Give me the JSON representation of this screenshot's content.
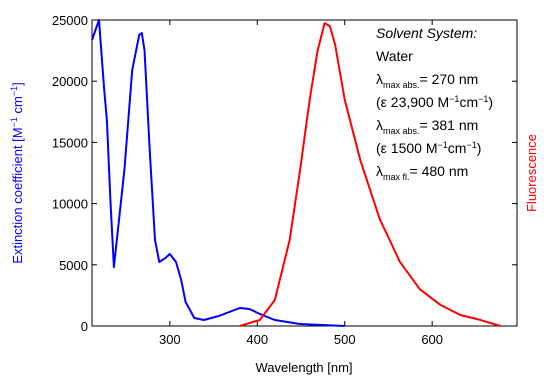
{
  "chart_data": {
    "type": "line",
    "xlabel": "Wavelength [nm]",
    "ylabel": [
      "Extinction coefficient [M",
      "−1",
      " cm",
      "−1",
      "]"
    ],
    "y2label": "Fluorescence",
    "ylabel_color": "#0000ff",
    "y2label_color": "#ff0000",
    "xlim": [
      211,
      697
    ],
    "xticks": [
      300,
      400,
      500,
      600
    ],
    "ylim": [
      0,
      25000
    ],
    "yticks": [
      0,
      5000,
      10000,
      15000,
      20000,
      25000
    ],
    "y2lim": [
      0,
      1
    ],
    "series": [
      {
        "color": "#0000ff",
        "x": [
          211,
          219,
          225,
          228,
          232,
          236,
          248,
          257,
          265,
          268,
          271,
          277,
          283,
          288,
          295,
          300,
          307,
          313,
          318,
          328,
          339,
          356,
          380,
          391,
          403,
          420,
          449,
          500
        ],
        "values": [
          23370,
          25000,
          19280,
          16830,
          10290,
          4800,
          12750,
          20900,
          23780,
          23940,
          22550,
          14380,
          7030,
          5230,
          5560,
          5880,
          5230,
          3760,
          1960,
          650,
          490,
          820,
          1470,
          1390,
          980,
          490,
          160,
          0
        ]
      },
      {
        "color": "#ff0000",
        "axis": "y2",
        "x": [
          380,
          403,
          420,
          437,
          449,
          460,
          469,
          477,
          483,
          489,
          500,
          518,
          540,
          563,
          586,
          609,
          632,
          655,
          678
        ],
        "values": [
          0,
          0.02,
          0.085,
          0.28,
          0.51,
          0.74,
          0.9,
          0.99,
          0.98,
          0.92,
          0.74,
          0.54,
          0.35,
          0.21,
          0.12,
          0.07,
          0.036,
          0.02,
          0
        ]
      }
    ],
    "annotations": [
      "Solvent System:",
      "Water",
      [
        "λ",
        "max abs.",
        "= 270 nm"
      ],
      [
        "(ε 23,900 M",
        "−1",
        "cm",
        "−1",
        ")"
      ],
      [
        "λ",
        "max abs.",
        "= 381 nm"
      ],
      [
        "(ε 1500 M",
        "−1",
        "cm",
        "−1",
        ")"
      ],
      [
        "λ",
        "max fl.",
        "= 480 nm"
      ]
    ]
  }
}
